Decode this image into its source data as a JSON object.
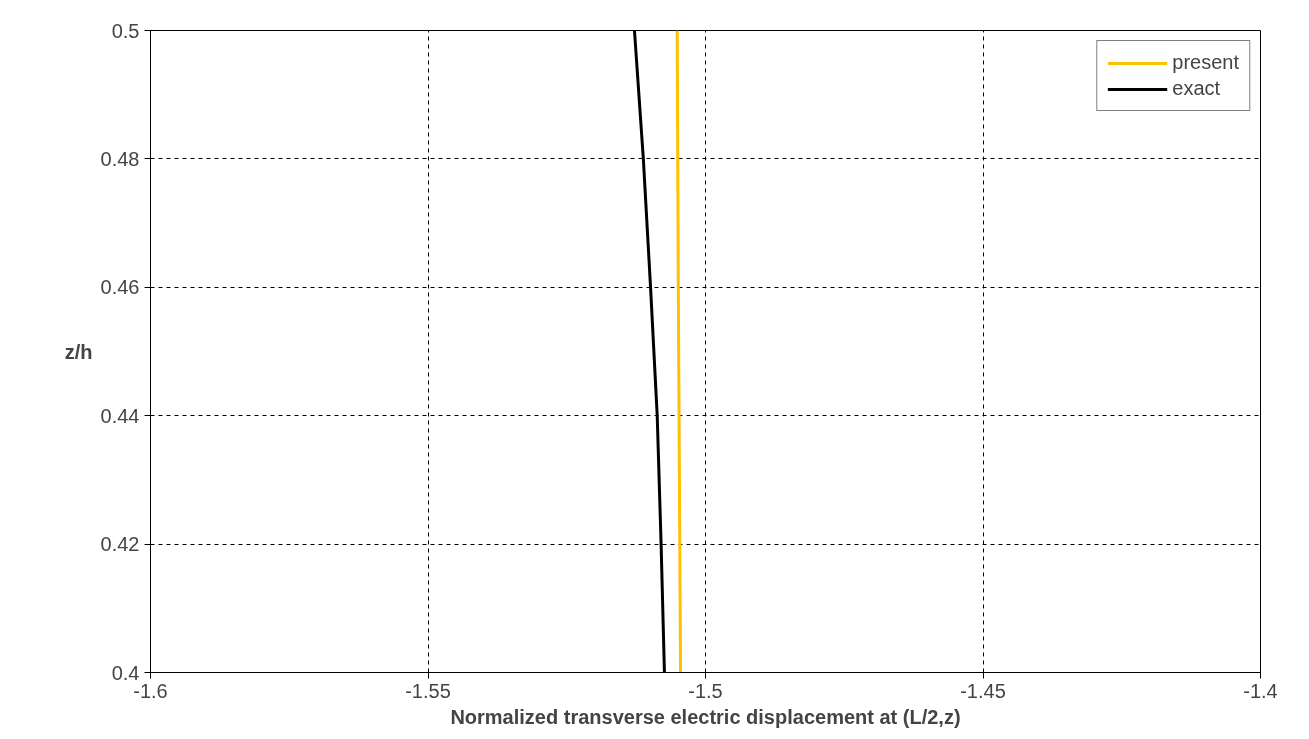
{
  "chart_data": {
    "type": "line",
    "xlabel": "Normalized transverse electric displacement at (L/2,z)",
    "ylabel": "z/h",
    "xlim": [
      -1.6,
      -1.4
    ],
    "xticks": [
      -1.6,
      -1.55,
      -1.5,
      -1.45,
      -1.4
    ],
    "ylim": [
      0.4,
      0.5
    ],
    "yticks": [
      0.4,
      0.42,
      0.44,
      0.46,
      0.48,
      0.5
    ],
    "grid": true,
    "legend": "top right",
    "marker": "none",
    "line_style": "solid",
    "series": [
      {
        "name": "present",
        "color": "#ffc000",
        "x": [
          -1.5045,
          -1.5046,
          -1.5047,
          -1.5048,
          -1.5049,
          -1.505,
          -1.5051
        ],
        "values": [
          0.4,
          0.415,
          0.43,
          0.445,
          0.46,
          0.48,
          0.5
        ]
      },
      {
        "name": "exact",
        "color": "#000000",
        "x": [
          -1.5074,
          -1.508,
          -1.5087,
          -1.5099,
          -1.5112,
          -1.5128
        ],
        "values": [
          0.4,
          0.42,
          0.44,
          0.46,
          0.48,
          0.5
        ]
      }
    ]
  }
}
